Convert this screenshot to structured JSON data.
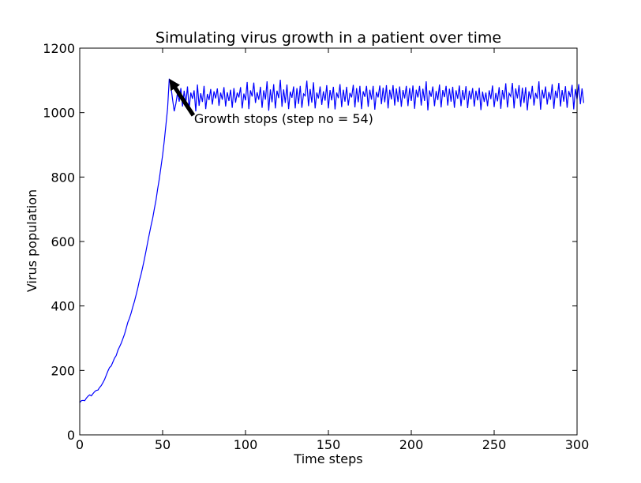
{
  "chart_data": {
    "type": "line",
    "title": "Simulating virus growth in a patient over time",
    "xlabel": "Time steps",
    "ylabel": "Virus population",
    "xlim": [
      0,
      300
    ],
    "ylim": [
      0,
      1200
    ],
    "x_ticks": [
      0,
      50,
      100,
      150,
      200,
      250,
      300
    ],
    "y_ticks": [
      0,
      200,
      400,
      600,
      800,
      1000,
      1200
    ],
    "grid": false,
    "series_color": "#0000ff",
    "annotation": {
      "text": "Growth stops (step no = 54)",
      "point": [
        54,
        1105
      ],
      "text_position": [
        69,
        967
      ]
    },
    "series": [
      {
        "x_start": 0,
        "x_step": 1,
        "values": [
          100,
          106,
          107,
          106,
          114,
          120,
          124,
          121,
          128,
          134,
          138,
          139,
          147,
          153,
          162,
          172,
          185,
          198,
          209,
          214,
          226,
          238,
          246,
          262,
          273,
          284,
          298,
          312,
          330,
          349,
          362,
          378,
          397,
          414,
          434,
          455,
          479,
          498,
          521,
          545,
          571,
          598,
          624,
          649,
          672,
          701,
          728,
          763,
          794,
          831,
          868,
          912,
          962,
          1013,
          1105,
          1082,
          1041,
          1004,
          1028,
          1062,
          1034,
          1076,
          1019,
          1068,
          1028,
          1081,
          1011,
          1062,
          1043,
          1069,
          1004,
          1087,
          1021,
          1060,
          1033,
          1083,
          1011,
          1058,
          1039,
          1073,
          1025,
          1066,
          1044,
          1075,
          1021,
          1062,
          1040,
          1079,
          1019,
          1063,
          1036,
          1071,
          1015,
          1076,
          1031,
          1062,
          1047,
          1079,
          1013,
          1059,
          1038,
          1095,
          1011,
          1069,
          1050,
          1093,
          1030,
          1063,
          1040,
          1080,
          1015,
          1069,
          1040,
          1097,
          1006,
          1072,
          1032,
          1088,
          1013,
          1068,
          1045,
          1102,
          1018,
          1072,
          1030,
          1087,
          1011,
          1065,
          1046,
          1081,
          1013,
          1076,
          1027,
          1083,
          1015,
          1058,
          1052,
          1099,
          1020,
          1073,
          1031,
          1094,
          1013,
          1062,
          1044,
          1081,
          1024,
          1066,
          1037,
          1085,
          1013,
          1070,
          1038,
          1080,
          1010,
          1062,
          1045,
          1088,
          1017,
          1071,
          1034,
          1080,
          1022,
          1061,
          1047,
          1086,
          1016,
          1076,
          1032,
          1083,
          1011,
          1066,
          1049,
          1083,
          1018,
          1071,
          1040,
          1083,
          1009,
          1064,
          1047,
          1084,
          1026,
          1077,
          1032,
          1085,
          1013,
          1071,
          1041,
          1085,
          1022,
          1075,
          1033,
          1081,
          1018,
          1070,
          1044,
          1083,
          1020,
          1076,
          1036,
          1084,
          1012,
          1071,
          1047,
          1083,
          1022,
          1074,
          1036,
          1097,
          1007,
          1069,
          1049,
          1081,
          1020,
          1067,
          1039,
          1087,
          1016,
          1070,
          1048,
          1083,
          1022,
          1074,
          1034,
          1080,
          1015,
          1069,
          1043,
          1084,
          1020,
          1070,
          1039,
          1082,
          1014,
          1068,
          1041,
          1076,
          1019,
          1068,
          1038,
          1077,
          1008,
          1065,
          1033,
          1062,
          1020,
          1069,
          1042,
          1084,
          1017,
          1061,
          1035,
          1079,
          1012,
          1070,
          1040,
          1091,
          1016,
          1060,
          1050,
          1092,
          1013,
          1075,
          1044,
          1085,
          1018,
          1077,
          1030,
          1079,
          1007,
          1066,
          1042,
          1083,
          1022,
          1061,
          1043,
          1097,
          1009,
          1071,
          1044,
          1081,
          1025,
          1064,
          1040,
          1088,
          1012,
          1068,
          1045,
          1092,
          1019,
          1070,
          1034,
          1082,
          1015,
          1067,
          1048,
          1086,
          1010,
          1073,
          1041,
          1088,
          1026,
          1075,
          1030
        ]
      }
    ]
  }
}
